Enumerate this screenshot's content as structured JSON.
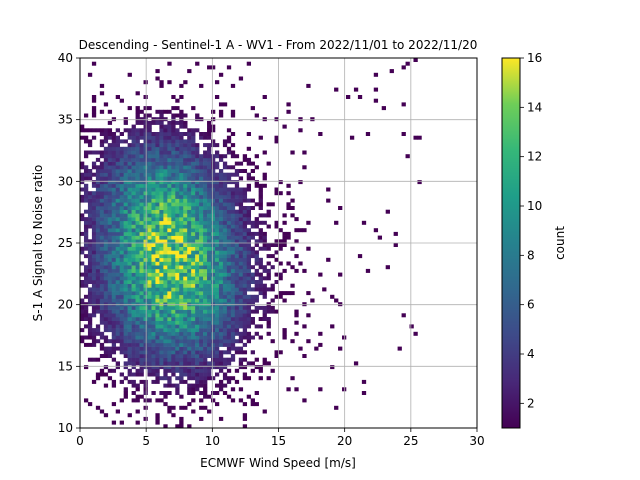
{
  "chart_data": {
    "type": "heatmap",
    "title": "Descending - Sentinel-1 A - WV1 - From 2022/11/01 to 2022/11/20",
    "xlabel": "ECMWF Wind Speed [m/s]",
    "ylabel": "S-1 A Signal to Noise ratio",
    "xlim": [
      0,
      30
    ],
    "ylim": [
      10,
      40
    ],
    "xticks": [
      "0",
      "5",
      "10",
      "15",
      "20",
      "25",
      "30"
    ],
    "yticks": [
      "10",
      "15",
      "20",
      "25",
      "30",
      "35",
      "40"
    ],
    "grid": true,
    "colorbar": {
      "label": "count",
      "range": [
        1,
        16
      ],
      "ticks": [
        "2",
        "4",
        "6",
        "8",
        "10",
        "12",
        "14",
        "16"
      ],
      "colormap": "viridis"
    },
    "density_model": {
      "peak_count": 15,
      "peak_x": 7,
      "peak_y": 22,
      "bin_width_x": 0.3,
      "bin_width_y": 0.3
    }
  }
}
